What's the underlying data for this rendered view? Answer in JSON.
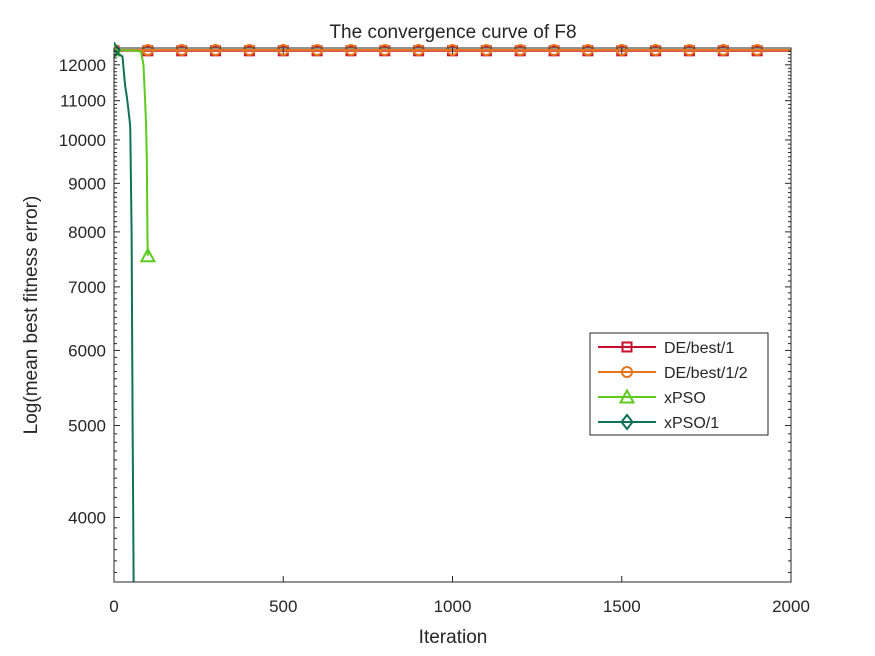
{
  "chart_data": {
    "type": "line",
    "title": "The convergence curve of F8",
    "xlabel": "Iteration",
    "ylabel": "Log(mean best fitness error)",
    "xlim": [
      0,
      2000
    ],
    "ylim": [
      3420,
      12500
    ],
    "yscale": "log",
    "grid": false,
    "legend_position": "right",
    "xticks": [
      0,
      500,
      1000,
      1500,
      2000
    ],
    "yticks": [
      4000,
      5000,
      6000,
      7000,
      8000,
      9000,
      10000,
      11000,
      12000
    ],
    "series": [
      {
        "name": "DE/best/1",
        "color": "#c8102e",
        "marker": "square",
        "x": [
          0,
          100,
          2000
        ],
        "y": [
          12415,
          12415,
          12415
        ],
        "marker_x": [
          0,
          100,
          200,
          300,
          400,
          500,
          600,
          700,
          800,
          900,
          1000,
          1100,
          1200,
          1300,
          1400,
          1500,
          1600,
          1700,
          1800,
          1900
        ]
      },
      {
        "name": "DE/best/1/2",
        "color": "#e6761e",
        "marker": "circle",
        "x": [
          0,
          100,
          2000
        ],
        "y": [
          12440,
          12440,
          12440
        ],
        "marker_x": [
          0,
          100,
          200,
          300,
          400,
          500,
          600,
          700,
          800,
          900,
          1000,
          1100,
          1200,
          1300,
          1400,
          1500,
          1600,
          1700,
          1800,
          1900
        ]
      },
      {
        "name": "xPSO",
        "color": "#5ccb1e",
        "marker": "triangle",
        "x": [
          0,
          60,
          80,
          87,
          92,
          95,
          97,
          99,
          100
        ],
        "y": [
          12440,
          12420,
          12390,
          12000,
          11000,
          10300,
          9500,
          7800,
          7550
        ],
        "marker_x": [
          0,
          100
        ]
      },
      {
        "name": "xPSO/1",
        "color": "#0f7257",
        "marker": "diamond",
        "x": [
          0,
          15,
          25,
          30,
          33,
          38,
          42,
          46,
          48,
          52,
          55,
          58
        ],
        "y": [
          12440,
          12300,
          12250,
          11700,
          11400,
          11100,
          10800,
          10500,
          10300,
          8000,
          5000,
          3420
        ],
        "marker_x": [
          0
        ]
      }
    ]
  }
}
